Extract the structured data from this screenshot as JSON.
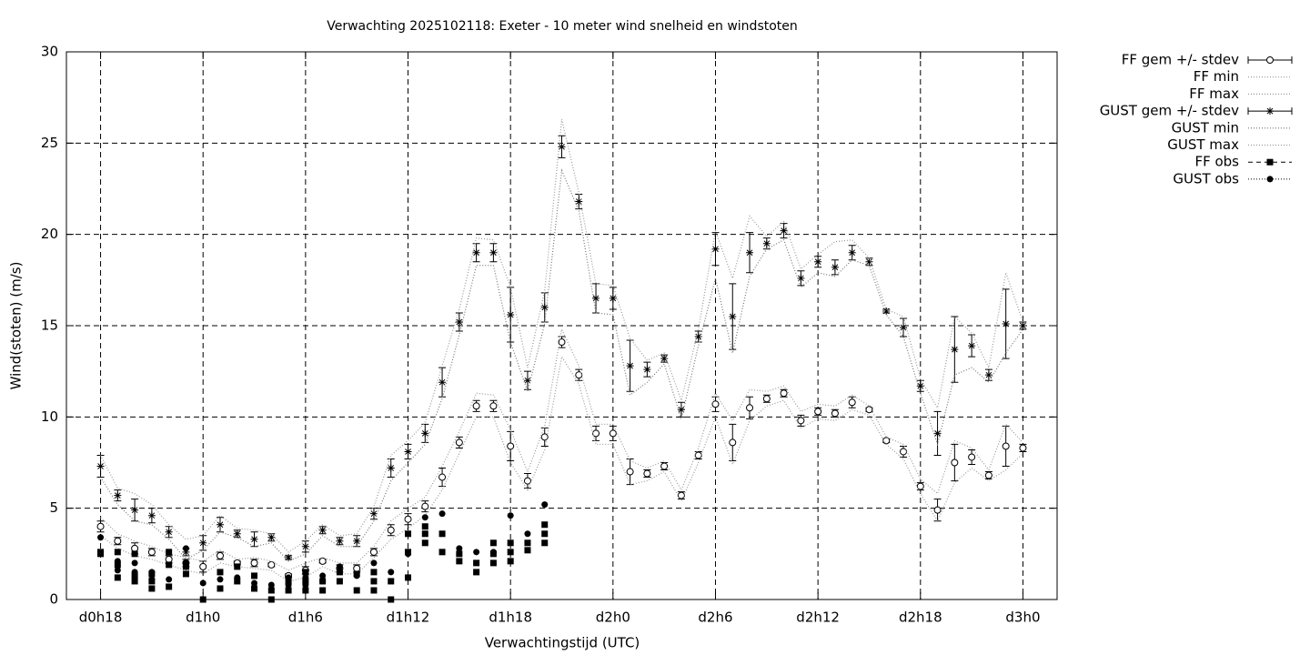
{
  "chart_data": {
    "type": "errorbar",
    "title": "Verwachting 2025102118: Exeter - 10 meter wind snelheid en windstoten",
    "x_label": "Verwachtingstijd (UTC)",
    "y_label": "Wind(stoten) (m/s)",
    "xlim": [
      16,
      74
    ],
    "ylim": [
      0,
      30
    ],
    "xticks": [
      {
        "value": 18,
        "label": "d0h18"
      },
      {
        "value": 24,
        "label": "d1h0"
      },
      {
        "value": 30,
        "label": "d1h6"
      },
      {
        "value": 36,
        "label": "d1h12"
      },
      {
        "value": 42,
        "label": "d1h18"
      },
      {
        "value": 48,
        "label": "d2h0"
      },
      {
        "value": 54,
        "label": "d2h6"
      },
      {
        "value": 60,
        "label": "d2h12"
      },
      {
        "value": 66,
        "label": "d2h18"
      },
      {
        "value": 72,
        "label": "d3h0"
      }
    ],
    "yticks": [
      0,
      5,
      10,
      15,
      20,
      25,
      30
    ],
    "grid": true,
    "legend": "outside-right",
    "x": [
      18,
      19,
      20,
      21,
      22,
      23,
      24,
      25,
      26,
      27,
      28,
      29,
      30,
      31,
      32,
      33,
      34,
      35,
      36,
      37,
      38,
      39,
      40,
      41,
      42,
      43,
      44,
      45,
      46,
      47,
      48,
      49,
      50,
      51,
      52,
      53,
      54,
      55,
      56,
      57,
      58,
      59,
      60,
      61,
      62,
      63,
      64,
      65,
      66,
      67,
      68,
      69,
      70,
      71,
      72
    ],
    "series": [
      {
        "name": "FF gem +/- stdev",
        "color": "#000000",
        "style": "errorbars",
        "marker": "circle",
        "values": [
          4.0,
          3.2,
          2.8,
          2.6,
          2.2,
          2.0,
          1.8,
          2.4,
          2.0,
          2.0,
          1.9,
          1.3,
          1.6,
          2.1,
          1.7,
          1.7,
          2.6,
          3.8,
          4.4,
          5.1,
          6.7,
          8.6,
          10.6,
          10.6,
          8.4,
          6.5,
          8.9,
          14.1,
          12.3,
          9.1,
          9.1,
          7.0,
          6.9,
          7.3,
          5.7,
          7.9,
          10.7,
          8.6,
          10.5,
          11.0,
          11.3,
          9.8,
          10.3,
          10.2,
          10.8,
          10.4,
          8.7,
          8.1,
          6.2,
          4.9,
          7.5,
          7.8,
          6.8,
          8.4,
          8.3
        ],
        "errors": [
          0.3,
          0.2,
          0.3,
          0.2,
          0.2,
          0.2,
          0.3,
          0.2,
          0.1,
          0.2,
          0.1,
          0.1,
          0.2,
          0.1,
          0.2,
          0.2,
          0.2,
          0.3,
          0.3,
          0.3,
          0.5,
          0.3,
          0.3,
          0.3,
          0.8,
          0.4,
          0.5,
          0.3,
          0.3,
          0.4,
          0.4,
          0.7,
          0.2,
          0.2,
          0.2,
          0.2,
          0.4,
          1.0,
          0.6,
          0.2,
          0.2,
          0.3,
          0.2,
          0.2,
          0.3,
          0.1,
          0.1,
          0.3,
          0.2,
          0.6,
          1.0,
          0.4,
          0.2,
          1.1,
          0.2
        ]
      },
      {
        "name": "FF min",
        "color": "#999999",
        "style": "dotted",
        "values": [
          3.5,
          2.8,
          2.4,
          2.2,
          1.9,
          1.6,
          1.4,
          2.0,
          1.8,
          1.7,
          1.6,
          1.0,
          1.2,
          1.8,
          1.4,
          1.4,
          2.3,
          3.3,
          3.9,
          4.6,
          6.0,
          8.0,
          10.0,
          10.0,
          7.5,
          6.0,
          8.2,
          13.3,
          11.8,
          8.5,
          8.5,
          6.3,
          6.5,
          7.0,
          5.4,
          7.5,
          10.0,
          7.4,
          9.8,
          10.6,
          10.9,
          9.4,
          9.9,
          9.8,
          10.4,
          10.1,
          8.5,
          7.7,
          5.8,
          4.3,
          6.4,
          7.2,
          6.5,
          7.1,
          8.0
        ]
      },
      {
        "name": "FF max",
        "color": "#999999",
        "style": "dotted",
        "values": [
          4.5,
          3.6,
          3.2,
          2.9,
          2.5,
          2.3,
          2.1,
          2.7,
          2.2,
          2.3,
          2.1,
          1.6,
          2.0,
          2.3,
          2.0,
          2.0,
          2.9,
          4.3,
          5.0,
          5.6,
          7.3,
          9.2,
          11.3,
          11.2,
          9.3,
          7.0,
          9.5,
          14.8,
          12.8,
          9.6,
          9.6,
          7.6,
          7.2,
          7.6,
          6.0,
          8.3,
          11.3,
          9.8,
          11.5,
          11.4,
          11.7,
          10.3,
          10.7,
          10.6,
          11.2,
          10.6,
          8.9,
          8.5,
          6.6,
          5.8,
          8.7,
          8.3,
          7.1,
          9.6,
          8.6
        ]
      },
      {
        "name": "GUST gem +/- stdev",
        "color": "#000000",
        "style": "errorbars",
        "marker": "star",
        "values": [
          7.3,
          5.7,
          4.9,
          4.6,
          3.7,
          2.6,
          3.1,
          4.1,
          3.6,
          3.3,
          3.4,
          2.3,
          2.9,
          3.8,
          3.2,
          3.2,
          4.7,
          7.2,
          8.1,
          9.1,
          11.9,
          15.2,
          19.0,
          19.0,
          15.6,
          12.0,
          16.0,
          24.8,
          21.8,
          16.5,
          16.5,
          12.8,
          12.6,
          13.2,
          10.4,
          14.4,
          19.2,
          15.5,
          19.0,
          19.5,
          20.2,
          17.6,
          18.5,
          18.2,
          19.0,
          18.5,
          15.8,
          14.9,
          11.7,
          9.1,
          13.7,
          13.9,
          12.3,
          15.1,
          15.0
        ],
        "errors": [
          0.6,
          0.3,
          0.6,
          0.4,
          0.3,
          0.2,
          0.4,
          0.4,
          0.2,
          0.4,
          0.2,
          0.1,
          0.3,
          0.2,
          0.2,
          0.3,
          0.3,
          0.5,
          0.4,
          0.5,
          0.8,
          0.5,
          0.5,
          0.5,
          1.5,
          0.5,
          0.8,
          0.6,
          0.4,
          0.8,
          0.6,
          1.4,
          0.4,
          0.2,
          0.4,
          0.3,
          0.9,
          1.8,
          1.1,
          0.3,
          0.4,
          0.4,
          0.3,
          0.4,
          0.4,
          0.2,
          0.1,
          0.5,
          0.3,
          1.2,
          1.8,
          0.6,
          0.3,
          1.9,
          0.2
        ]
      },
      {
        "name": "GUST min",
        "color": "#777777",
        "style": "dotted",
        "values": [
          6.7,
          5.2,
          4.3,
          4.1,
          3.3,
          2.2,
          2.7,
          3.7,
          3.4,
          2.9,
          3.1,
          2.1,
          2.5,
          3.5,
          2.9,
          2.9,
          4.3,
          6.5,
          7.5,
          8.5,
          11.0,
          14.5,
          18.3,
          18.3,
          14.1,
          11.4,
          15.1,
          23.5,
          21.3,
          15.7,
          15.6,
          11.2,
          11.9,
          12.9,
          9.9,
          13.9,
          17.6,
          13.5,
          17.7,
          19.2,
          19.7,
          17.1,
          17.9,
          17.7,
          18.6,
          18.3,
          15.6,
          14.4,
          11.3,
          8.5,
          12.3,
          12.7,
          11.9,
          13.5,
          14.8
        ]
      },
      {
        "name": "GUST max",
        "color": "#999999",
        "style": "dotted",
        "values": [
          7.9,
          6.1,
          5.8,
          5.2,
          4.1,
          3.3,
          3.5,
          4.6,
          3.9,
          3.8,
          3.6,
          2.6,
          3.2,
          4.1,
          3.5,
          3.6,
          5.1,
          7.9,
          8.7,
          9.7,
          12.8,
          15.9,
          19.8,
          19.7,
          17.1,
          12.7,
          16.9,
          26.3,
          22.3,
          17.3,
          17.2,
          14.3,
          13.1,
          13.5,
          10.9,
          14.8,
          20.2,
          17.6,
          21.0,
          19.9,
          20.7,
          18.1,
          18.9,
          19.6,
          19.7,
          18.7,
          15.9,
          15.5,
          12.1,
          10.5,
          15.5,
          14.6,
          12.7,
          17.9,
          15.2
        ]
      },
      {
        "name": "FF obs",
        "color": "#000000",
        "style": "points",
        "marker": "square",
        "x": [
          18,
          18,
          19,
          19,
          19,
          20,
          20,
          20,
          21,
          21,
          21,
          22,
          22,
          22,
          23,
          23,
          24,
          25,
          25,
          26,
          26,
          27,
          27,
          28,
          28,
          29,
          29,
          30,
          30,
          30,
          31,
          31,
          32,
          32,
          33,
          33,
          34,
          34,
          34,
          35,
          35,
          36,
          36,
          36,
          37,
          37,
          37,
          38,
          38,
          39,
          39,
          40,
          40,
          41,
          41,
          41,
          42,
          42,
          42,
          43,
          43,
          44,
          44,
          44
        ],
        "values": [
          2.6,
          2.5,
          2.6,
          1.9,
          1.2,
          2.5,
          1.3,
          1.0,
          1.4,
          1.0,
          0.6,
          2.6,
          1.9,
          0.7,
          1.8,
          1.4,
          0.0,
          1.5,
          0.6,
          1.8,
          1.0,
          1.3,
          0.6,
          0.5,
          0.0,
          1.0,
          0.5,
          1.5,
          1.0,
          0.5,
          1.0,
          0.5,
          1.5,
          1.0,
          1.4,
          0.5,
          1.5,
          1.0,
          0.5,
          1.0,
          0.0,
          3.6,
          2.6,
          1.2,
          4.0,
          3.6,
          3.1,
          3.6,
          2.6,
          2.5,
          2.1,
          2.0,
          1.5,
          3.1,
          2.5,
          2.0,
          3.1,
          2.6,
          2.1,
          3.1,
          2.7,
          4.1,
          3.6,
          3.1
        ]
      },
      {
        "name": "GUST obs",
        "color": "#000000",
        "style": "points",
        "marker": "dot",
        "x": [
          18,
          19,
          19,
          20,
          20,
          21,
          21,
          22,
          23,
          23,
          24,
          25,
          26,
          27,
          28,
          29,
          29,
          30,
          30,
          31,
          31,
          32,
          33,
          34,
          35,
          36,
          37,
          38,
          39,
          40,
          41,
          42,
          43,
          44
        ],
        "values": [
          3.4,
          2.1,
          1.6,
          2.0,
          1.5,
          1.5,
          1.1,
          1.1,
          2.8,
          2.0,
          0.9,
          1.1,
          1.2,
          0.9,
          0.8,
          1.2,
          0.8,
          1.2,
          0.8,
          1.3,
          1.0,
          1.8,
          1.3,
          2.0,
          1.5,
          2.5,
          4.5,
          4.7,
          2.8,
          2.6,
          2.6,
          4.6,
          3.6,
          5.2
        ]
      }
    ]
  }
}
